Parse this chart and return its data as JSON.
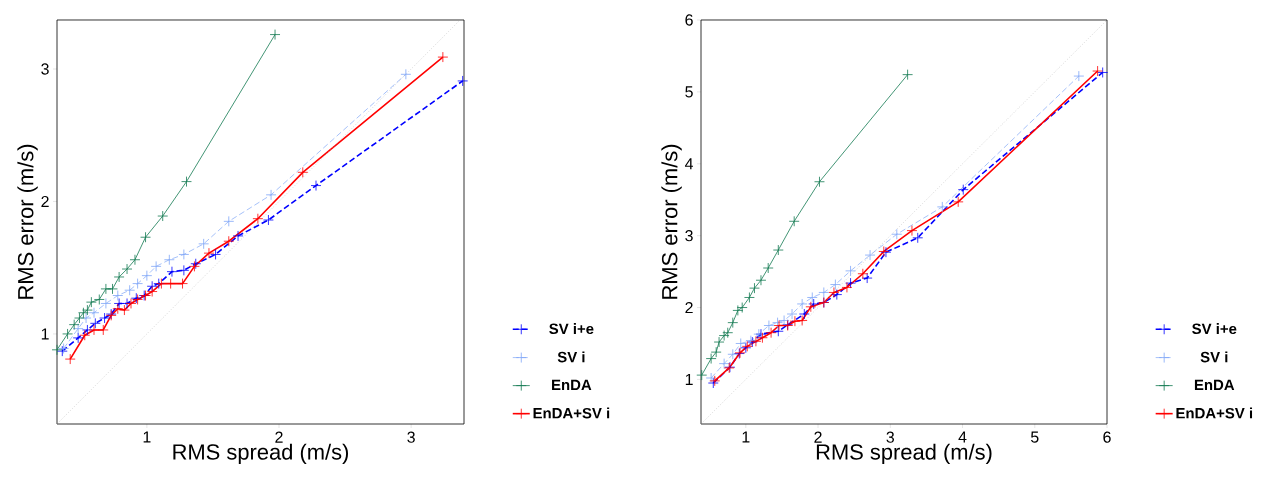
{
  "chart_data": [
    {
      "type": "line",
      "xlabel": "RMS spread (m/s)",
      "ylabel": "RMS error (m/s)",
      "xlim": [
        0.32,
        3.4
      ],
      "ylim": [
        0.32,
        3.37
      ],
      "xticks": [
        1,
        2,
        3
      ],
      "yticks": [
        1,
        2,
        3
      ],
      "legend": "right",
      "marker": "cross",
      "grid": false,
      "series": [
        {
          "name": "SV i+e",
          "color": "#0000ff",
          "line_style": "dashed",
          "x": [
            0.36,
            0.48,
            0.55,
            0.61,
            0.68,
            0.73,
            0.79,
            0.85,
            0.92,
            0.98,
            1.04,
            1.09,
            1.19,
            1.28,
            1.37,
            1.52,
            1.69,
            1.92,
            2.28,
            3.39
          ],
          "values": [
            0.87,
            0.97,
            1.03,
            1.08,
            1.12,
            1.15,
            1.23,
            1.23,
            1.27,
            1.29,
            1.36,
            1.38,
            1.47,
            1.48,
            1.53,
            1.6,
            1.74,
            1.86,
            2.12,
            2.91
          ]
        },
        {
          "name": "SV i",
          "color": "#7fa6f7",
          "line_style": "dashed",
          "x": [
            0.37,
            0.48,
            0.54,
            0.6,
            0.69,
            0.78,
            0.87,
            0.93,
            1.0,
            1.07,
            1.17,
            1.28,
            1.43,
            1.62,
            1.94,
            2.96
          ],
          "values": [
            0.89,
            1.04,
            1.12,
            1.16,
            1.23,
            1.29,
            1.33,
            1.38,
            1.44,
            1.51,
            1.56,
            1.6,
            1.68,
            1.85,
            2.05,
            2.96
          ]
        },
        {
          "name": "EnDA",
          "color": "#137a52",
          "line_style": "solid",
          "x": [
            0.32,
            0.4,
            0.45,
            0.49,
            0.52,
            0.55,
            0.58,
            0.64,
            0.69,
            0.74,
            0.79,
            0.85,
            0.91,
            0.99,
            1.12,
            1.3,
            1.97
          ],
          "values": [
            0.88,
            1.0,
            1.07,
            1.12,
            1.16,
            1.18,
            1.24,
            1.26,
            1.34,
            1.34,
            1.43,
            1.49,
            1.56,
            1.73,
            1.89,
            2.15,
            3.26
          ]
        },
        {
          "name": "EnDA+SV i",
          "color": "#ff0000",
          "line_style": "solid",
          "x": [
            0.42,
            0.53,
            0.6,
            0.67,
            0.73,
            0.78,
            0.83,
            0.88,
            0.93,
            0.99,
            1.04,
            1.11,
            1.18,
            1.27,
            1.36,
            1.47,
            1.62,
            1.84,
            2.18,
            3.24
          ],
          "values": [
            0.81,
            0.99,
            1.03,
            1.03,
            1.14,
            1.19,
            1.18,
            1.23,
            1.26,
            1.29,
            1.32,
            1.38,
            1.38,
            1.38,
            1.51,
            1.61,
            1.7,
            1.87,
            2.22,
            3.09
          ]
        },
        {
          "color": "#b0b0b0",
          "line_style": "dotted",
          "marker": "none",
          "x": [
            0.32,
            3.37
          ],
          "values": [
            0.32,
            3.37
          ]
        }
      ]
    },
    {
      "type": "line",
      "xlabel": "RMS spread (m/s)",
      "ylabel": "RMS error (m/s)",
      "xlim": [
        0.38,
        6
      ],
      "ylim": [
        0.38,
        6
      ],
      "xticks": [
        1,
        2,
        3,
        4,
        5,
        6
      ],
      "yticks": [
        1,
        2,
        3,
        4,
        5,
        6
      ],
      "legend": "right",
      "marker": "cross",
      "grid": false,
      "series": [
        {
          "name": "SV i+e",
          "color": "#0000ff",
          "line_style": "dashed",
          "x": [
            0.55,
            0.78,
            0.91,
            1.0,
            1.09,
            1.21,
            1.45,
            1.58,
            1.81,
            1.94,
            2.08,
            2.26,
            2.45,
            2.68,
            2.94,
            3.38,
            4.01,
            5.94
          ],
          "values": [
            0.95,
            1.17,
            1.36,
            1.44,
            1.52,
            1.63,
            1.67,
            1.76,
            1.91,
            2.05,
            2.07,
            2.18,
            2.34,
            2.41,
            2.77,
            2.97,
            3.64,
            5.27
          ]
        },
        {
          "name": "SV i",
          "color": "#7fa6f7",
          "line_style": "dashed",
          "x": [
            0.52,
            0.7,
            0.82,
            0.93,
            1.07,
            1.18,
            1.32,
            1.44,
            1.53,
            1.64,
            1.78,
            1.92,
            2.08,
            2.24,
            2.45,
            2.72,
            3.09,
            3.72,
            5.61
          ],
          "values": [
            1.02,
            1.22,
            1.35,
            1.5,
            1.54,
            1.63,
            1.75,
            1.79,
            1.82,
            1.91,
            2.05,
            2.14,
            2.21,
            2.32,
            2.51,
            2.73,
            3.02,
            3.4,
            5.22
          ]
        },
        {
          "name": "EnDA",
          "color": "#137a52",
          "line_style": "solid",
          "x": [
            0.39,
            0.52,
            0.59,
            0.63,
            0.7,
            0.75,
            0.82,
            0.89,
            0.95,
            1.05,
            1.12,
            1.21,
            1.31,
            1.45,
            1.67,
            2.02,
            3.24
          ],
          "values": [
            1.06,
            1.29,
            1.38,
            1.52,
            1.61,
            1.65,
            1.79,
            1.96,
            2.0,
            2.14,
            2.27,
            2.38,
            2.55,
            2.8,
            3.2,
            3.75,
            5.24
          ]
        },
        {
          "name": "EnDA+SV i",
          "color": "#ff0000",
          "line_style": "solid",
          "x": [
            0.57,
            0.77,
            0.92,
            1.02,
            1.14,
            1.23,
            1.35,
            1.46,
            1.58,
            1.68,
            1.78,
            1.9,
            2.08,
            2.22,
            2.4,
            2.62,
            2.91,
            3.3,
            3.94,
            5.87
          ],
          "values": [
            0.98,
            1.16,
            1.37,
            1.46,
            1.53,
            1.58,
            1.65,
            1.75,
            1.75,
            1.81,
            1.82,
            2.01,
            2.07,
            2.21,
            2.28,
            2.47,
            2.78,
            3.07,
            3.47,
            5.29
          ]
        },
        {
          "color": "#b0b0b0",
          "line_style": "dotted",
          "marker": "none",
          "x": [
            0.38,
            6
          ],
          "values": [
            0.38,
            6
          ]
        }
      ]
    }
  ]
}
